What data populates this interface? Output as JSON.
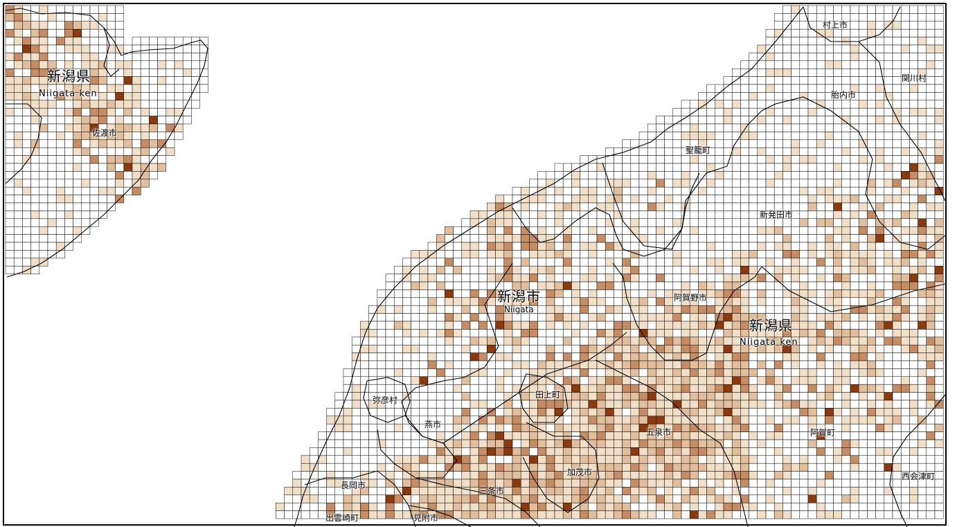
{
  "map": {
    "legend_colors": {
      "empty": "#ffffff",
      "level1": "#f1dfc8",
      "level2": "#e2bf9c",
      "level3": "#c68d64",
      "level4": "#8b3a0e"
    }
  },
  "labels": {
    "pref_sado": "新潟県",
    "pref_sado_romaji": "Niigata ken",
    "sado_city": "佐渡市",
    "murakami_city": "村上市",
    "sekikawa_village": "関川村",
    "tainai_city": "胎内市",
    "seiro_town": "聖籠町",
    "shibata_city": "新発田市",
    "niigata_city": "新潟市",
    "niigata_city_romaji": "Niigata",
    "agano_city": "阿賀野市",
    "pref_main": "新潟県",
    "pref_main_romaji": "Niigata ken",
    "yahiko_village": "弥彦村",
    "tagami_town": "田上町",
    "tsubame_city": "燕市",
    "gosen_city": "五泉市",
    "aga_town": "阿賀町",
    "kamo_city": "加茂市",
    "nishiaizu_town": "西会津町",
    "nagaoka_city": "長岡市",
    "sanjo_city": "三条市",
    "izumozaki_town": "出雲崎町",
    "mitsuke_city": "見附市"
  }
}
